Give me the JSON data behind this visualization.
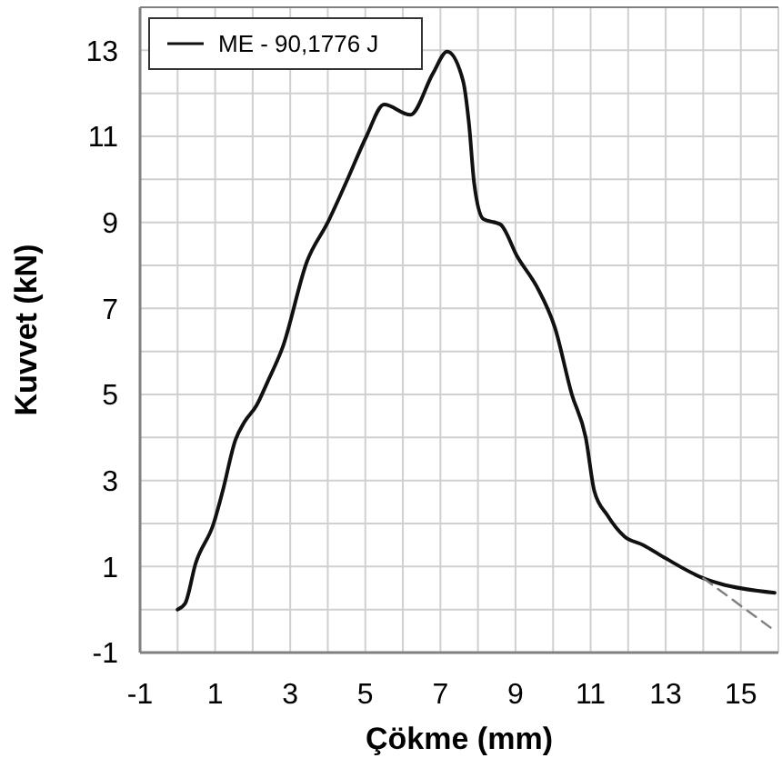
{
  "chart_data": {
    "type": "line",
    "xlabel": "Çökme (mm)",
    "ylabel": "Kuvvet (kN)",
    "xlim": [
      -1,
      16
    ],
    "ylim": [
      -1,
      14
    ],
    "xticks": [
      -1,
      {
        "value": 0,
        "label": null
      },
      1,
      {
        "value": 2,
        "label": null
      },
      3,
      {
        "value": 4,
        "label": null
      },
      5,
      {
        "value": 6,
        "label": null
      },
      7,
      {
        "value": 8,
        "label": null
      },
      9,
      {
        "value": 10,
        "label": null
      },
      11,
      {
        "value": 12,
        "label": null
      },
      13,
      {
        "value": 14,
        "label": null
      },
      15,
      {
        "value": 16,
        "label": null
      }
    ],
    "yticks": [
      -1,
      {
        "value": 0,
        "label": null
      },
      1,
      {
        "value": 2,
        "label": null
      },
      3,
      {
        "value": 4,
        "label": null
      },
      5,
      {
        "value": 6,
        "label": null
      },
      7,
      {
        "value": 8,
        "label": null
      },
      9,
      {
        "value": 10,
        "label": null
      },
      11,
      {
        "value": 12,
        "label": null
      },
      13,
      {
        "value": 14,
        "label": null
      }
    ],
    "grid": true,
    "legend": "top left",
    "marker": "none",
    "series": [
      {
        "name": "ME - 90,1776 J",
        "color": "#111111",
        "line_style": "solid",
        "x": [
          0,
          0.2,
          0.48,
          0.96,
          1.2,
          1.54,
          1.78,
          2.1,
          2.4,
          2.8,
          3.45,
          4.0,
          4.55,
          5.03,
          5.5,
          6.2,
          6.8,
          7.18,
          7.6,
          7.76,
          7.9,
          8.14,
          8.6,
          9.05,
          9.57,
          10.05,
          10.5,
          10.87,
          11.1,
          11.44,
          11.9,
          12.4,
          13.0,
          14.0,
          14.45,
          15.9
        ],
        "values": [
          0,
          0.14,
          1.07,
          2.0,
          2.75,
          3.94,
          4.36,
          4.74,
          5.3,
          6.1,
          8.1,
          9.0,
          10.05,
          11.0,
          11.74,
          11.5,
          12.46,
          12.97,
          12.3,
          11.3,
          9.9,
          9.08,
          8.95,
          8.2,
          7.5,
          6.55,
          5.0,
          4.0,
          2.75,
          2.2,
          1.7,
          1.5,
          1.19,
          0.73,
          0.6,
          0.39
        ]
      },
      {
        "color": "#808080",
        "line_style": "dashed",
        "x": [
          14.0,
          15.9
        ],
        "values": [
          0.73,
          -0.49
        ]
      }
    ]
  }
}
